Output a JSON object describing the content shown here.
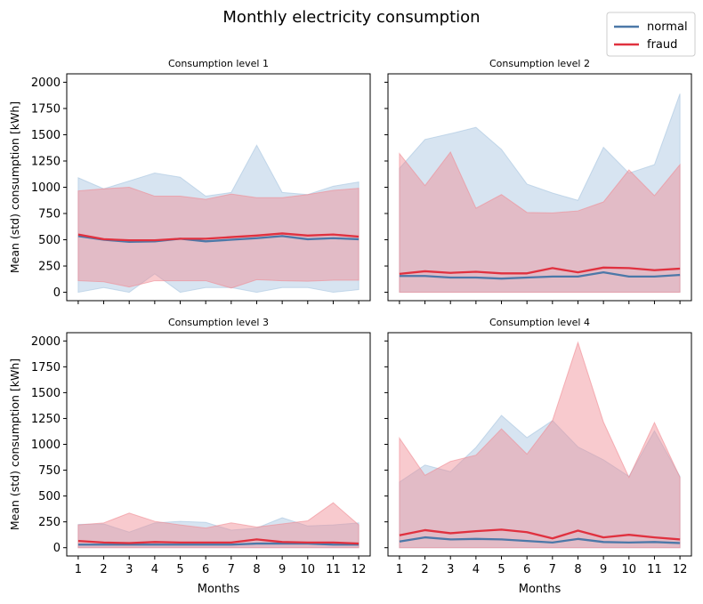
{
  "figure": {
    "title": "Monthly electricity consumption",
    "legend": [
      {
        "name": "normal",
        "color": "#4c78a8"
      },
      {
        "name": "fraud",
        "color": "#e0313f"
      }
    ],
    "legend_placement": "top-right"
  },
  "chart_data": [
    {
      "type": "line",
      "title": "Consumption level 1",
      "xlabel": "",
      "ylabel": "Mean (std) consumption [kWh]",
      "x": [
        1,
        2,
        3,
        4,
        5,
        6,
        7,
        8,
        9,
        10,
        11,
        12
      ],
      "ylim": [
        -80,
        2080
      ],
      "yticks": [
        0,
        250,
        500,
        750,
        1000,
        1250,
        1500,
        1750,
        2000
      ],
      "grid": false,
      "series": [
        {
          "name": "normal",
          "color": "#4c78a8",
          "band_color": "#a7c4df",
          "mean": [
            535,
            500,
            480,
            485,
            510,
            485,
            500,
            515,
            535,
            505,
            515,
            505
          ],
          "upper": [
            1090,
            985,
            1060,
            1135,
            1095,
            915,
            950,
            1400,
            950,
            930,
            1010,
            1050
          ],
          "lower": [
            0,
            45,
            0,
            175,
            0,
            45,
            45,
            0,
            45,
            45,
            0,
            25
          ]
        },
        {
          "name": "fraud",
          "color": "#e0313f",
          "band_color": "#f08a92",
          "mean": [
            550,
            505,
            495,
            495,
            510,
            510,
            525,
            540,
            560,
            540,
            550,
            530
          ],
          "upper": [
            965,
            985,
            1000,
            915,
            915,
            885,
            935,
            900,
            900,
            930,
            970,
            990
          ],
          "lower": [
            110,
            100,
            50,
            110,
            110,
            110,
            40,
            120,
            110,
            105,
            115,
            115
          ]
        }
      ]
    },
    {
      "type": "line",
      "title": "Consumption level 2",
      "xlabel": "",
      "ylabel": "",
      "x": [
        1,
        2,
        3,
        4,
        5,
        6,
        7,
        8,
        9,
        10,
        11,
        12
      ],
      "ylim": [
        -80,
        2080
      ],
      "yticks": [
        0,
        250,
        500,
        750,
        1000,
        1250,
        1500,
        1750,
        2000
      ],
      "grid": false,
      "series": [
        {
          "name": "normal",
          "color": "#4c78a8",
          "band_color": "#a7c4df",
          "mean": [
            155,
            155,
            140,
            140,
            130,
            140,
            150,
            150,
            190,
            150,
            150,
            165
          ],
          "upper": [
            1180,
            1455,
            1510,
            1570,
            1360,
            1030,
            945,
            875,
            1380,
            1135,
            1215,
            1890
          ],
          "lower": [
            0,
            0,
            0,
            0,
            0,
            0,
            0,
            0,
            0,
            0,
            0,
            0
          ]
        },
        {
          "name": "fraud",
          "color": "#e0313f",
          "band_color": "#f08a92",
          "mean": [
            175,
            200,
            185,
            195,
            180,
            180,
            230,
            190,
            235,
            230,
            210,
            225
          ],
          "upper": [
            1320,
            1015,
            1335,
            800,
            930,
            760,
            755,
            775,
            860,
            1165,
            920,
            1215
          ],
          "lower": [
            0,
            0,
            0,
            0,
            0,
            0,
            0,
            0,
            0,
            0,
            0,
            0
          ]
        }
      ]
    },
    {
      "type": "line",
      "title": "Consumption level 3",
      "xlabel": "Months",
      "ylabel": "Mean (std) consumption [kWh]",
      "x": [
        1,
        2,
        3,
        4,
        5,
        6,
        7,
        8,
        9,
        10,
        11,
        12
      ],
      "ylim": [
        -80,
        2080
      ],
      "yticks": [
        0,
        250,
        500,
        750,
        1000,
        1250,
        1500,
        1750,
        2000
      ],
      "grid": false,
      "series": [
        {
          "name": "normal",
          "color": "#4c78a8",
          "band_color": "#a7c4df",
          "mean": [
            30,
            30,
            30,
            30,
            30,
            30,
            30,
            40,
            40,
            40,
            30,
            30
          ],
          "upper": [
            225,
            230,
            150,
            240,
            255,
            245,
            170,
            190,
            290,
            210,
            220,
            240
          ],
          "lower": [
            0,
            0,
            0,
            0,
            0,
            0,
            0,
            0,
            0,
            0,
            0,
            0
          ]
        },
        {
          "name": "fraud",
          "color": "#e0313f",
          "band_color": "#f08a92",
          "mean": [
            65,
            50,
            45,
            55,
            50,
            50,
            50,
            80,
            55,
            50,
            50,
            40
          ],
          "upper": [
            220,
            240,
            335,
            255,
            220,
            190,
            240,
            200,
            230,
            260,
            435,
            220
          ],
          "lower": [
            0,
            0,
            0,
            0,
            0,
            0,
            0,
            0,
            0,
            0,
            0,
            0
          ]
        }
      ]
    },
    {
      "type": "line",
      "title": "Consumption level 4",
      "xlabel": "Months",
      "ylabel": "",
      "x": [
        1,
        2,
        3,
        4,
        5,
        6,
        7,
        8,
        9,
        10,
        11,
        12
      ],
      "ylim": [
        -80,
        2080
      ],
      "yticks": [
        0,
        250,
        500,
        750,
        1000,
        1250,
        1500,
        1750,
        2000
      ],
      "grid": false,
      "series": [
        {
          "name": "normal",
          "color": "#4c78a8",
          "band_color": "#a7c4df",
          "mean": [
            60,
            100,
            80,
            85,
            80,
            65,
            50,
            85,
            55,
            50,
            55,
            45
          ],
          "upper": [
            635,
            800,
            735,
            970,
            1280,
            1065,
            1230,
            975,
            850,
            690,
            1130,
            690
          ],
          "lower": [
            0,
            0,
            0,
            0,
            0,
            0,
            0,
            0,
            0,
            0,
            0,
            0
          ]
        },
        {
          "name": "fraud",
          "color": "#e0313f",
          "band_color": "#f08a92",
          "mean": [
            120,
            170,
            140,
            160,
            175,
            150,
            90,
            165,
            100,
            125,
            100,
            80
          ],
          "upper": [
            1060,
            700,
            835,
            895,
            1150,
            905,
            1230,
            1985,
            1215,
            680,
            1210,
            680
          ],
          "lower": [
            0,
            0,
            0,
            0,
            0,
            0,
            0,
            0,
            0,
            0,
            0,
            0
          ]
        }
      ]
    }
  ]
}
